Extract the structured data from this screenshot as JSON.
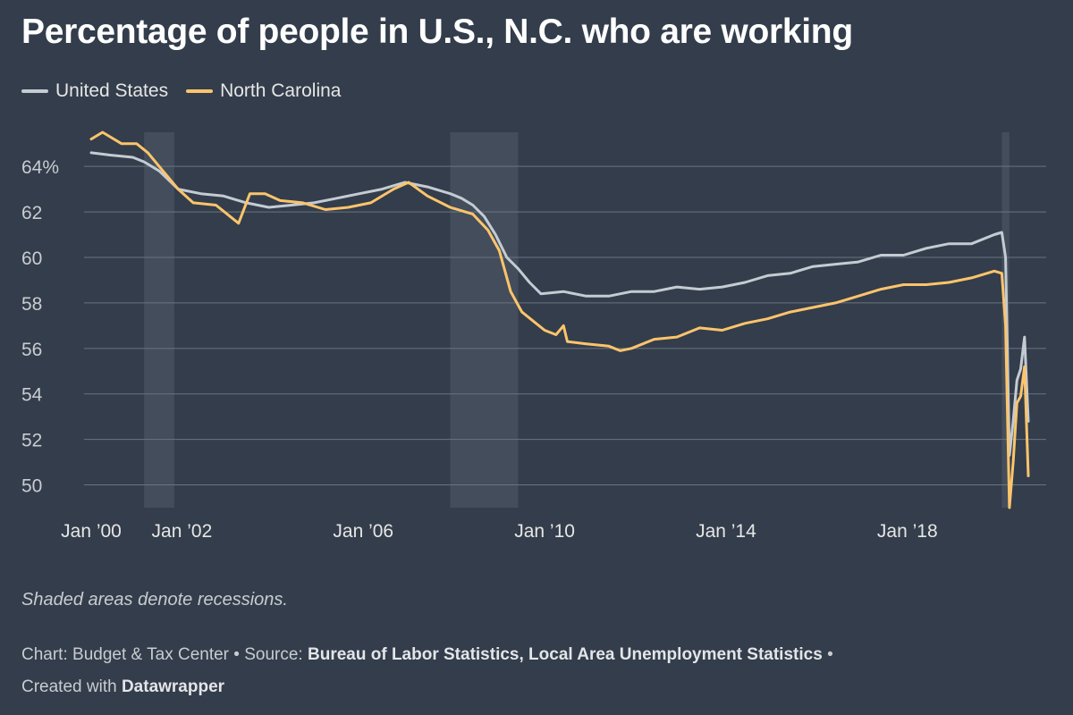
{
  "title": "Percentage of people in U.S., N.C. who are working",
  "note": "Shaded areas denote recessions.",
  "credits": {
    "chart_label": "Chart:",
    "chart_by": "Budget & Tax Center",
    "source_label": "Source:",
    "source": "Bureau of Labor Statistics, Local Area Unemployment Statistics",
    "created_label": "Created with",
    "created_with": "Datawrapper",
    "separator": "•"
  },
  "colors": {
    "background": "#333d4b",
    "us": "#c4cbd3",
    "nc": "#fcc46c",
    "recession": "#46505e",
    "grid": "#6b7480"
  },
  "chart_data": {
    "type": "line",
    "x_start": "2000-01",
    "x_end": "2020-09",
    "ylim": [
      49,
      65.5
    ],
    "y_ticks": [
      50,
      52,
      54,
      56,
      58,
      60,
      62,
      64
    ],
    "y_tick_labels": [
      "50",
      "52",
      "54",
      "56",
      "58",
      "60",
      "62",
      "64%"
    ],
    "x_ticks": [
      "2000-01",
      "2002-01",
      "2006-01",
      "2010-01",
      "2014-01",
      "2018-01"
    ],
    "x_tick_labels": [
      "Jan ’00",
      "Jan ’02",
      "Jan ’06",
      "Jan ’10",
      "Jan ’14",
      "Jan ’18"
    ],
    "recessions": [
      {
        "start": "2001-03",
        "end": "2001-11"
      },
      {
        "start": "2007-12",
        "end": "2009-06"
      },
      {
        "start": "2020-02",
        "end": "2020-04"
      }
    ],
    "series": [
      {
        "name": "United States",
        "points": [
          [
            "2000-01",
            64.6
          ],
          [
            "2000-06",
            64.5
          ],
          [
            "2000-12",
            64.4
          ],
          [
            "2001-03",
            64.2
          ],
          [
            "2001-07",
            63.8
          ],
          [
            "2001-12",
            63.0
          ],
          [
            "2002-06",
            62.8
          ],
          [
            "2002-12",
            62.7
          ],
          [
            "2003-06",
            62.4
          ],
          [
            "2003-12",
            62.2
          ],
          [
            "2004-06",
            62.3
          ],
          [
            "2004-12",
            62.4
          ],
          [
            "2005-06",
            62.6
          ],
          [
            "2005-12",
            62.8
          ],
          [
            "2006-06",
            63.0
          ],
          [
            "2006-12",
            63.3
          ],
          [
            "2007-06",
            63.1
          ],
          [
            "2007-12",
            62.8
          ],
          [
            "2008-03",
            62.6
          ],
          [
            "2008-06",
            62.3
          ],
          [
            "2008-09",
            61.8
          ],
          [
            "2008-12",
            61.0
          ],
          [
            "2009-03",
            60.0
          ],
          [
            "2009-06",
            59.5
          ],
          [
            "2009-09",
            58.9
          ],
          [
            "2009-12",
            58.4
          ],
          [
            "2010-06",
            58.5
          ],
          [
            "2010-12",
            58.3
          ],
          [
            "2011-06",
            58.3
          ],
          [
            "2011-12",
            58.5
          ],
          [
            "2012-06",
            58.5
          ],
          [
            "2012-12",
            58.7
          ],
          [
            "2013-06",
            58.6
          ],
          [
            "2013-12",
            58.7
          ],
          [
            "2014-06",
            58.9
          ],
          [
            "2014-12",
            59.2
          ],
          [
            "2015-06",
            59.3
          ],
          [
            "2015-12",
            59.6
          ],
          [
            "2016-06",
            59.7
          ],
          [
            "2016-12",
            59.8
          ],
          [
            "2017-06",
            60.1
          ],
          [
            "2017-12",
            60.1
          ],
          [
            "2018-06",
            60.4
          ],
          [
            "2018-12",
            60.6
          ],
          [
            "2019-06",
            60.6
          ],
          [
            "2019-12",
            61.0
          ],
          [
            "2020-02",
            61.1
          ],
          [
            "2020-03",
            60.0
          ],
          [
            "2020-04",
            51.3
          ],
          [
            "2020-05",
            52.8
          ],
          [
            "2020-06",
            54.6
          ],
          [
            "2020-07",
            55.1
          ],
          [
            "2020-08",
            56.5
          ],
          [
            "2020-09",
            52.8
          ]
        ]
      },
      {
        "name": "North Carolina",
        "points": [
          [
            "2000-01",
            65.2
          ],
          [
            "2000-04",
            65.5
          ],
          [
            "2000-09",
            65.0
          ],
          [
            "2001-01",
            65.0
          ],
          [
            "2001-04",
            64.6
          ],
          [
            "2001-08",
            63.8
          ],
          [
            "2001-12",
            63.0
          ],
          [
            "2002-04",
            62.4
          ],
          [
            "2002-10",
            62.3
          ],
          [
            "2003-04",
            61.5
          ],
          [
            "2003-07",
            62.8
          ],
          [
            "2003-11",
            62.8
          ],
          [
            "2004-03",
            62.5
          ],
          [
            "2004-09",
            62.4
          ],
          [
            "2005-03",
            62.1
          ],
          [
            "2005-09",
            62.2
          ],
          [
            "2006-03",
            62.4
          ],
          [
            "2006-09",
            63.0
          ],
          [
            "2007-01",
            63.3
          ],
          [
            "2007-06",
            62.7
          ],
          [
            "2007-12",
            62.2
          ],
          [
            "2008-06",
            61.9
          ],
          [
            "2008-10",
            61.2
          ],
          [
            "2009-01",
            60.3
          ],
          [
            "2009-04",
            58.5
          ],
          [
            "2009-07",
            57.6
          ],
          [
            "2009-10",
            57.2
          ],
          [
            "2010-01",
            56.8
          ],
          [
            "2010-04",
            56.6
          ],
          [
            "2010-06",
            57.0
          ],
          [
            "2010-07",
            56.3
          ],
          [
            "2010-12",
            56.2
          ],
          [
            "2011-06",
            56.1
          ],
          [
            "2011-09",
            55.9
          ],
          [
            "2011-12",
            56.0
          ],
          [
            "2012-06",
            56.4
          ],
          [
            "2012-12",
            56.5
          ],
          [
            "2013-06",
            56.9
          ],
          [
            "2013-12",
            56.8
          ],
          [
            "2014-06",
            57.1
          ],
          [
            "2014-12",
            57.3
          ],
          [
            "2015-06",
            57.6
          ],
          [
            "2015-12",
            57.8
          ],
          [
            "2016-06",
            58.0
          ],
          [
            "2016-12",
            58.3
          ],
          [
            "2017-06",
            58.6
          ],
          [
            "2017-12",
            58.8
          ],
          [
            "2018-06",
            58.8
          ],
          [
            "2018-12",
            58.9
          ],
          [
            "2019-06",
            59.1
          ],
          [
            "2019-12",
            59.4
          ],
          [
            "2020-02",
            59.3
          ],
          [
            "2020-03",
            57.0
          ],
          [
            "2020-04",
            49.0
          ],
          [
            "2020-05",
            51.0
          ],
          [
            "2020-06",
            53.6
          ],
          [
            "2020-07",
            53.9
          ],
          [
            "2020-08",
            55.2
          ],
          [
            "2020-09",
            50.4
          ]
        ]
      }
    ]
  }
}
